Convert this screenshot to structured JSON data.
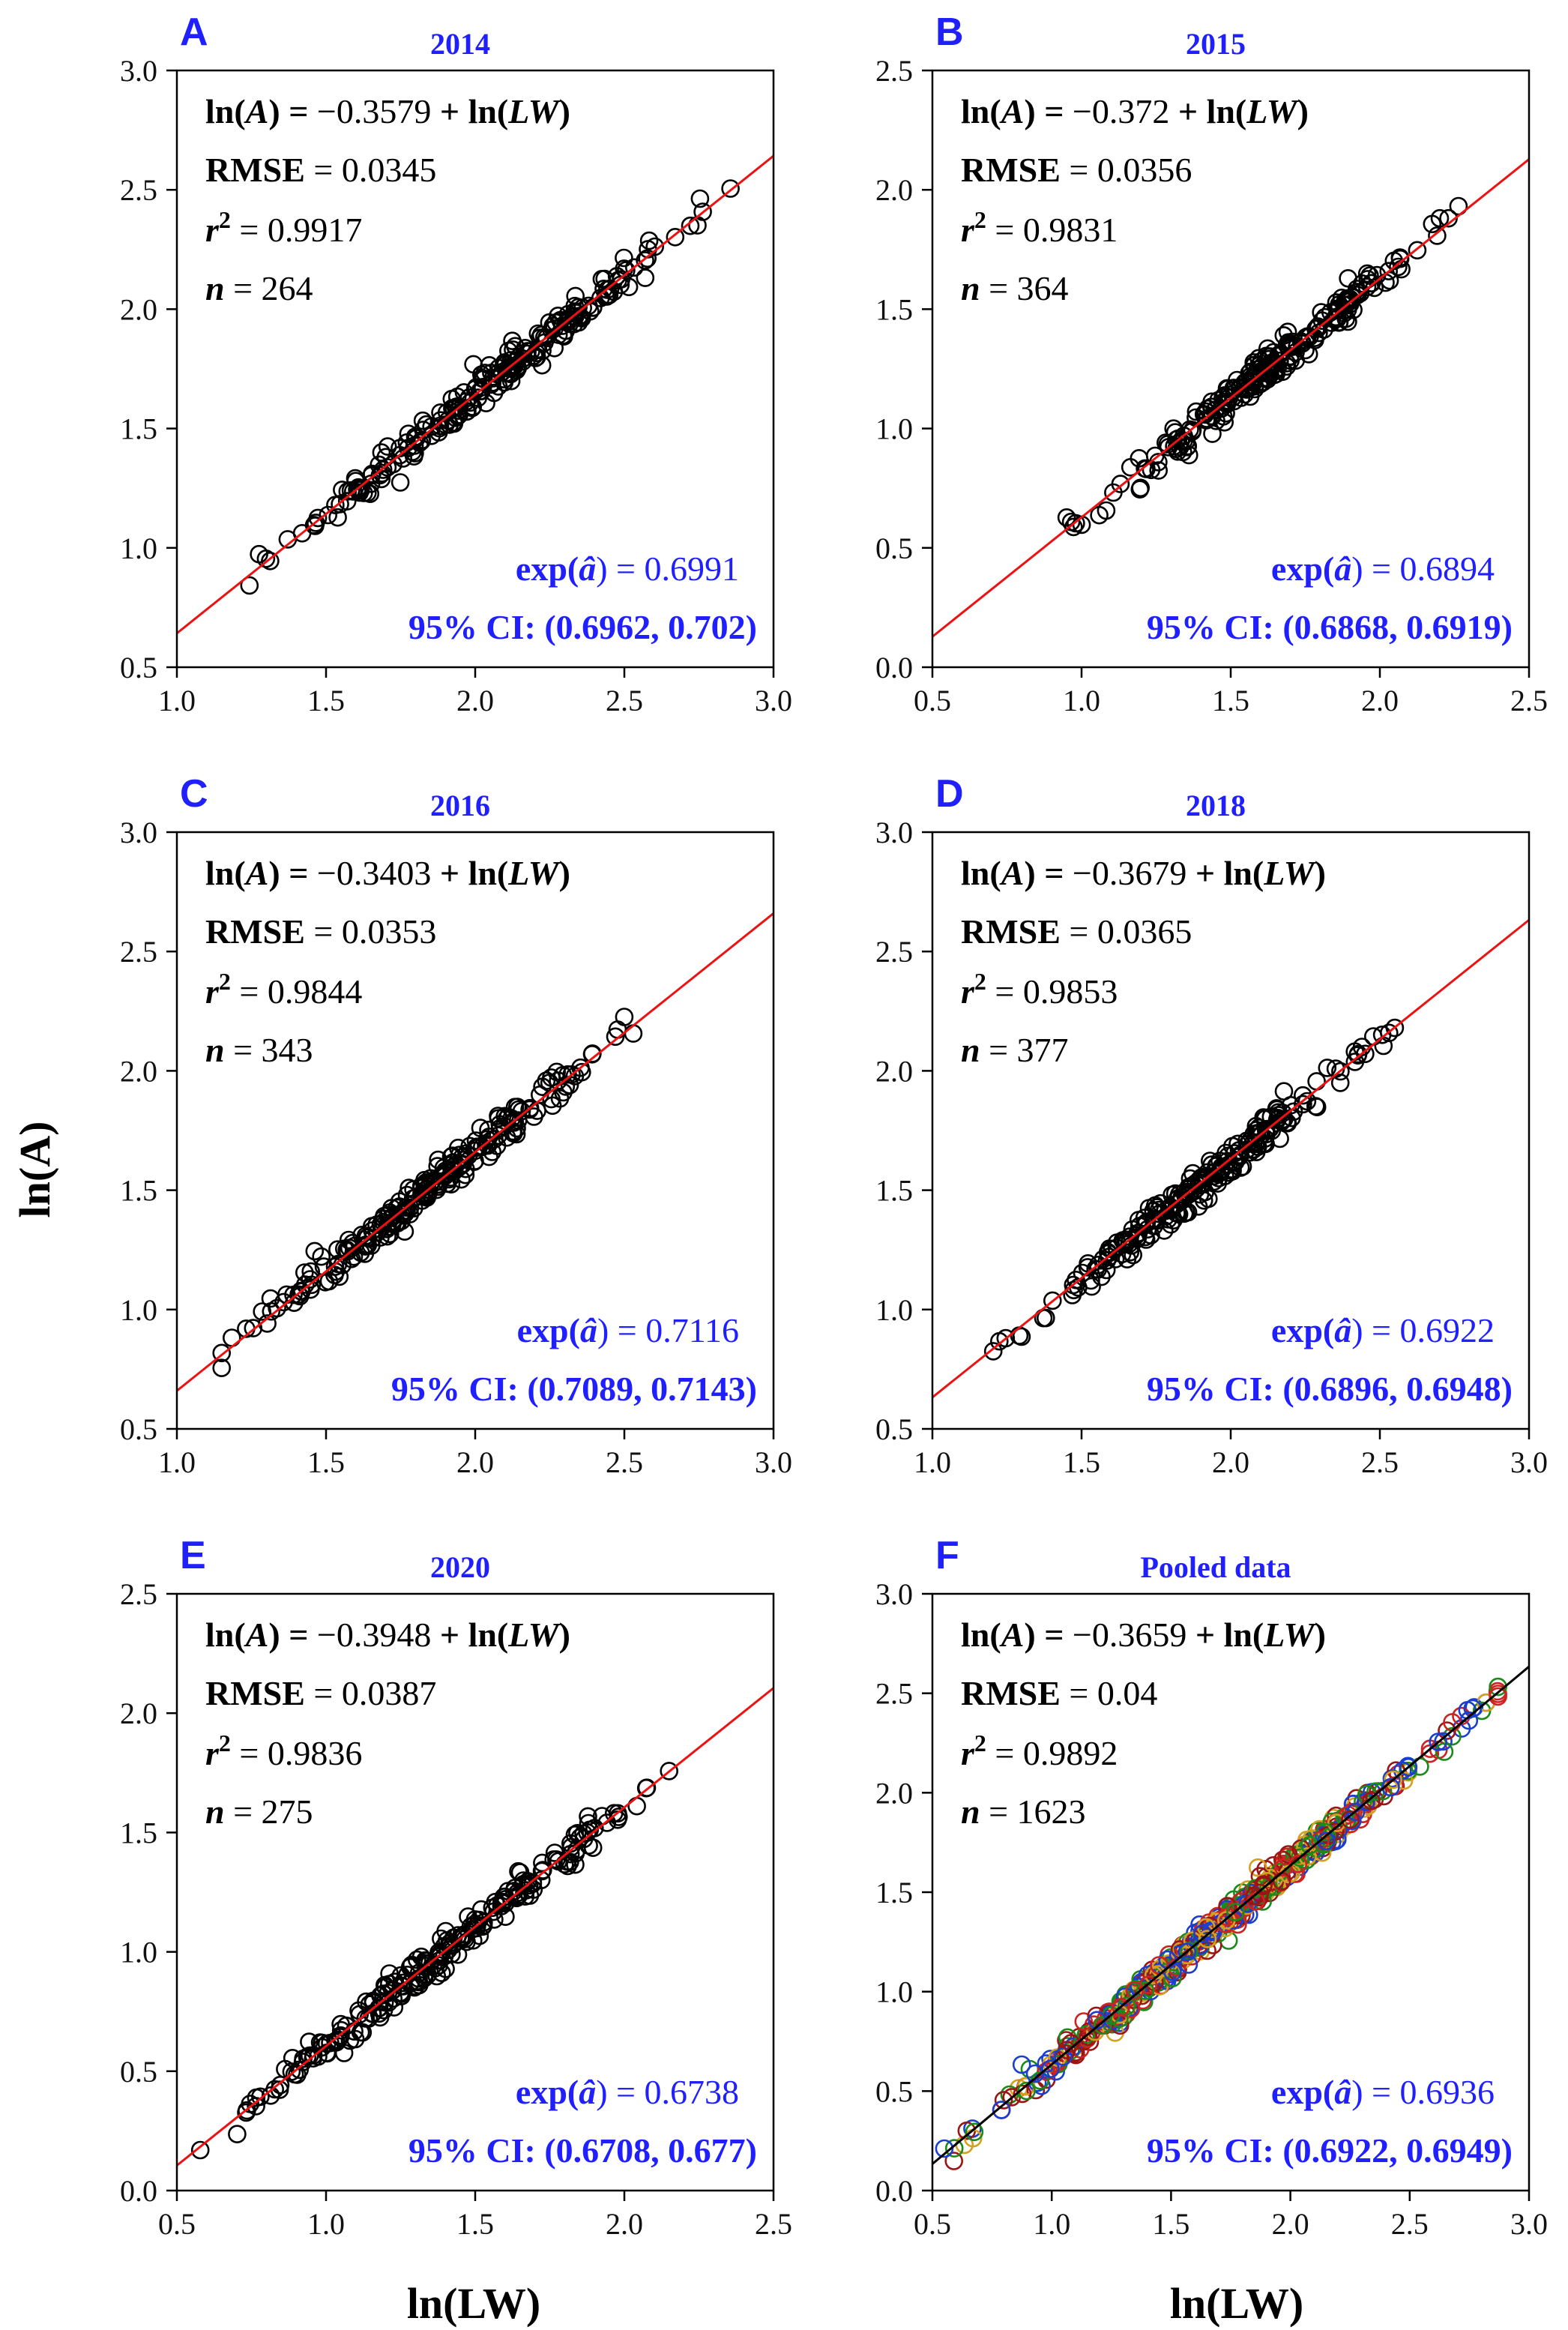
{
  "figure": {
    "ylabel": "ln(A)",
    "xlabel": "ln(LW)"
  },
  "chart_data": [
    {
      "type": "scatter",
      "letter": "A",
      "title": "2014",
      "xlim": [
        1.0,
        3.0
      ],
      "ylim": [
        0.5,
        3.0
      ],
      "xticks": [
        "1.0",
        "1.5",
        "2.0",
        "2.5",
        "3.0"
      ],
      "yticks": [
        "0.5",
        "1.0",
        "1.5",
        "2.0",
        "2.5",
        "3.0"
      ],
      "intercept": -0.3579,
      "slope": 1,
      "x_range": [
        1.24,
        2.87
      ],
      "equation": {
        "lhs": "ln(A) = ",
        "minus": "−",
        "value": "0.3579",
        "rhs_prefix": " + ln(",
        "rhs_var": "LW",
        "rhs_suffix": ")"
      },
      "rmse_label": "RMSE",
      "rmse_value": " = 0.0345",
      "r2_label": "r",
      "r2_sup": "2",
      "r2_value": " = 0.9917",
      "n_label": "n",
      "n_value": " = 264",
      "exp_label": "exp(",
      "exp_hat": "â",
      "exp_value": ") = 0.6991",
      "ci_label": "95% CI: (0.6962, 0.702)"
    },
    {
      "type": "scatter",
      "letter": "B",
      "title": "2015",
      "xlim": [
        0.5,
        2.5
      ],
      "ylim": [
        0.0,
        2.5
      ],
      "xticks": [
        "0.5",
        "1.0",
        "1.5",
        "2.0",
        "2.5"
      ],
      "yticks": [
        "0.0",
        "0.5",
        "1.0",
        "1.5",
        "2.0",
        "2.5"
      ],
      "intercept": -0.372,
      "slope": 1,
      "x_range": [
        0.95,
        2.28
      ],
      "equation": {
        "lhs": "ln(A) = ",
        "minus": "−",
        "value": "0.372",
        "rhs_prefix": " + ln(",
        "rhs_var": "LW",
        "rhs_suffix": ")"
      },
      "rmse_label": "RMSE",
      "rmse_value": " = 0.0356",
      "r2_label": "r",
      "r2_sup": "2",
      "r2_value": " = 0.9831",
      "n_label": "n",
      "n_value": " = 364",
      "exp_label": "exp(",
      "exp_hat": "â",
      "exp_value": ") = 0.6894",
      "ci_label": "95% CI: (0.6868, 0.6919)"
    },
    {
      "type": "scatter",
      "letter": "C",
      "title": "2016",
      "xlim": [
        1.0,
        3.0
      ],
      "ylim": [
        0.5,
        3.0
      ],
      "xticks": [
        "1.0",
        "1.5",
        "2.0",
        "2.5",
        "3.0"
      ],
      "yticks": [
        "0.5",
        "1.0",
        "1.5",
        "2.0",
        "2.5",
        "3.0"
      ],
      "intercept": -0.3403,
      "slope": 1,
      "x_range": [
        1.15,
        2.57
      ],
      "equation": {
        "lhs": "ln(A) = ",
        "minus": "−",
        "value": "0.3403",
        "rhs_prefix": " + ln(",
        "rhs_var": "LW",
        "rhs_suffix": ")"
      },
      "rmse_label": "RMSE",
      "rmse_value": " = 0.0353",
      "r2_label": "r",
      "r2_sup": "2",
      "r2_value": " = 0.9844",
      "n_label": "n",
      "n_value": " = 343",
      "exp_label": "exp(",
      "exp_hat": "â",
      "exp_value": ") = 0.7116",
      "ci_label": "95% CI: (0.7089, 0.7143)"
    },
    {
      "type": "scatter",
      "letter": "D",
      "title": "2018",
      "xlim": [
        1.0,
        3.0
      ],
      "ylim": [
        0.5,
        3.0
      ],
      "xticks": [
        "1.0",
        "1.5",
        "2.0",
        "2.5",
        "3.0"
      ],
      "yticks": [
        "0.5",
        "1.0",
        "1.5",
        "2.0",
        "2.5",
        "3.0"
      ],
      "intercept": -0.3679,
      "slope": 1,
      "x_range": [
        1.2,
        2.55
      ],
      "equation": {
        "lhs": "ln(A) = ",
        "minus": "−",
        "value": "0.3679",
        "rhs_prefix": " + ln(",
        "rhs_var": "LW",
        "rhs_suffix": ")"
      },
      "rmse_label": "RMSE",
      "rmse_value": " = 0.0365",
      "r2_label": "r",
      "r2_sup": "2",
      "r2_value": " = 0.9853",
      "n_label": "n",
      "n_value": " = 377",
      "exp_label": "exp(",
      "exp_hat": "â",
      "exp_value": ") = 0.6922",
      "ci_label": "95% CI: (0.6896, 0.6948)"
    },
    {
      "type": "scatter",
      "letter": "E",
      "title": "2020",
      "xlim": [
        0.5,
        2.5
      ],
      "ylim": [
        0.0,
        2.5
      ],
      "xticks": [
        "0.5",
        "1.0",
        "1.5",
        "2.0",
        "2.5"
      ],
      "yticks": [
        "0.0",
        "0.5",
        "1.0",
        "1.5",
        "2.0",
        "2.5"
      ],
      "intercept": -0.3948,
      "slope": 1,
      "x_range": [
        0.55,
        2.15
      ],
      "equation": {
        "lhs": "ln(A) = ",
        "minus": "−",
        "value": "0.3948",
        "rhs_prefix": " + ln(",
        "rhs_var": "LW",
        "rhs_suffix": ")"
      },
      "rmse_label": "RMSE",
      "rmse_value": " = 0.0387",
      "r2_label": "r",
      "r2_sup": "2",
      "r2_value": " = 0.9836",
      "n_label": "n",
      "n_value": " = 275",
      "exp_label": "exp(",
      "exp_hat": "â",
      "exp_value": ") = 0.6738",
      "ci_label": "95% CI: (0.6708, 0.677)"
    },
    {
      "type": "scatter",
      "letter": "F",
      "title": "Pooled data",
      "xlim": [
        0.5,
        3.0
      ],
      "ylim": [
        0.0,
        3.0
      ],
      "xticks": [
        "0.5",
        "1.0",
        "1.5",
        "2.0",
        "2.5",
        "3.0"
      ],
      "yticks": [
        "0.0",
        "0.5",
        "1.0",
        "1.5",
        "2.0",
        "2.5",
        "3.0"
      ],
      "intercept": -0.3659,
      "slope": 1,
      "x_range": [
        0.55,
        2.87
      ],
      "line_color": "#000000",
      "series_colors": [
        "#1a8a1a",
        "#cc2222",
        "#1a3fd0",
        "#d4a020",
        "#9b1515"
      ],
      "equation": {
        "lhs": "ln(A) = ",
        "minus": "−",
        "value": "0.3659",
        "rhs_prefix": " + ln(",
        "rhs_var": "LW",
        "rhs_suffix": ")"
      },
      "rmse_label": "RMSE",
      "rmse_value": " = 0.04",
      "r2_label": "r",
      "r2_sup": "2",
      "r2_value": " = 0.9892",
      "n_label": "n",
      "n_value": " = 1623",
      "exp_label": "exp(",
      "exp_hat": "â",
      "exp_value": ") = 0.6936",
      "ci_label": "95% CI: (0.6922, 0.6949)"
    }
  ],
  "colors": {
    "fit_line": "#ee1111",
    "points": "#000000",
    "title_blue": "#2020ff"
  }
}
